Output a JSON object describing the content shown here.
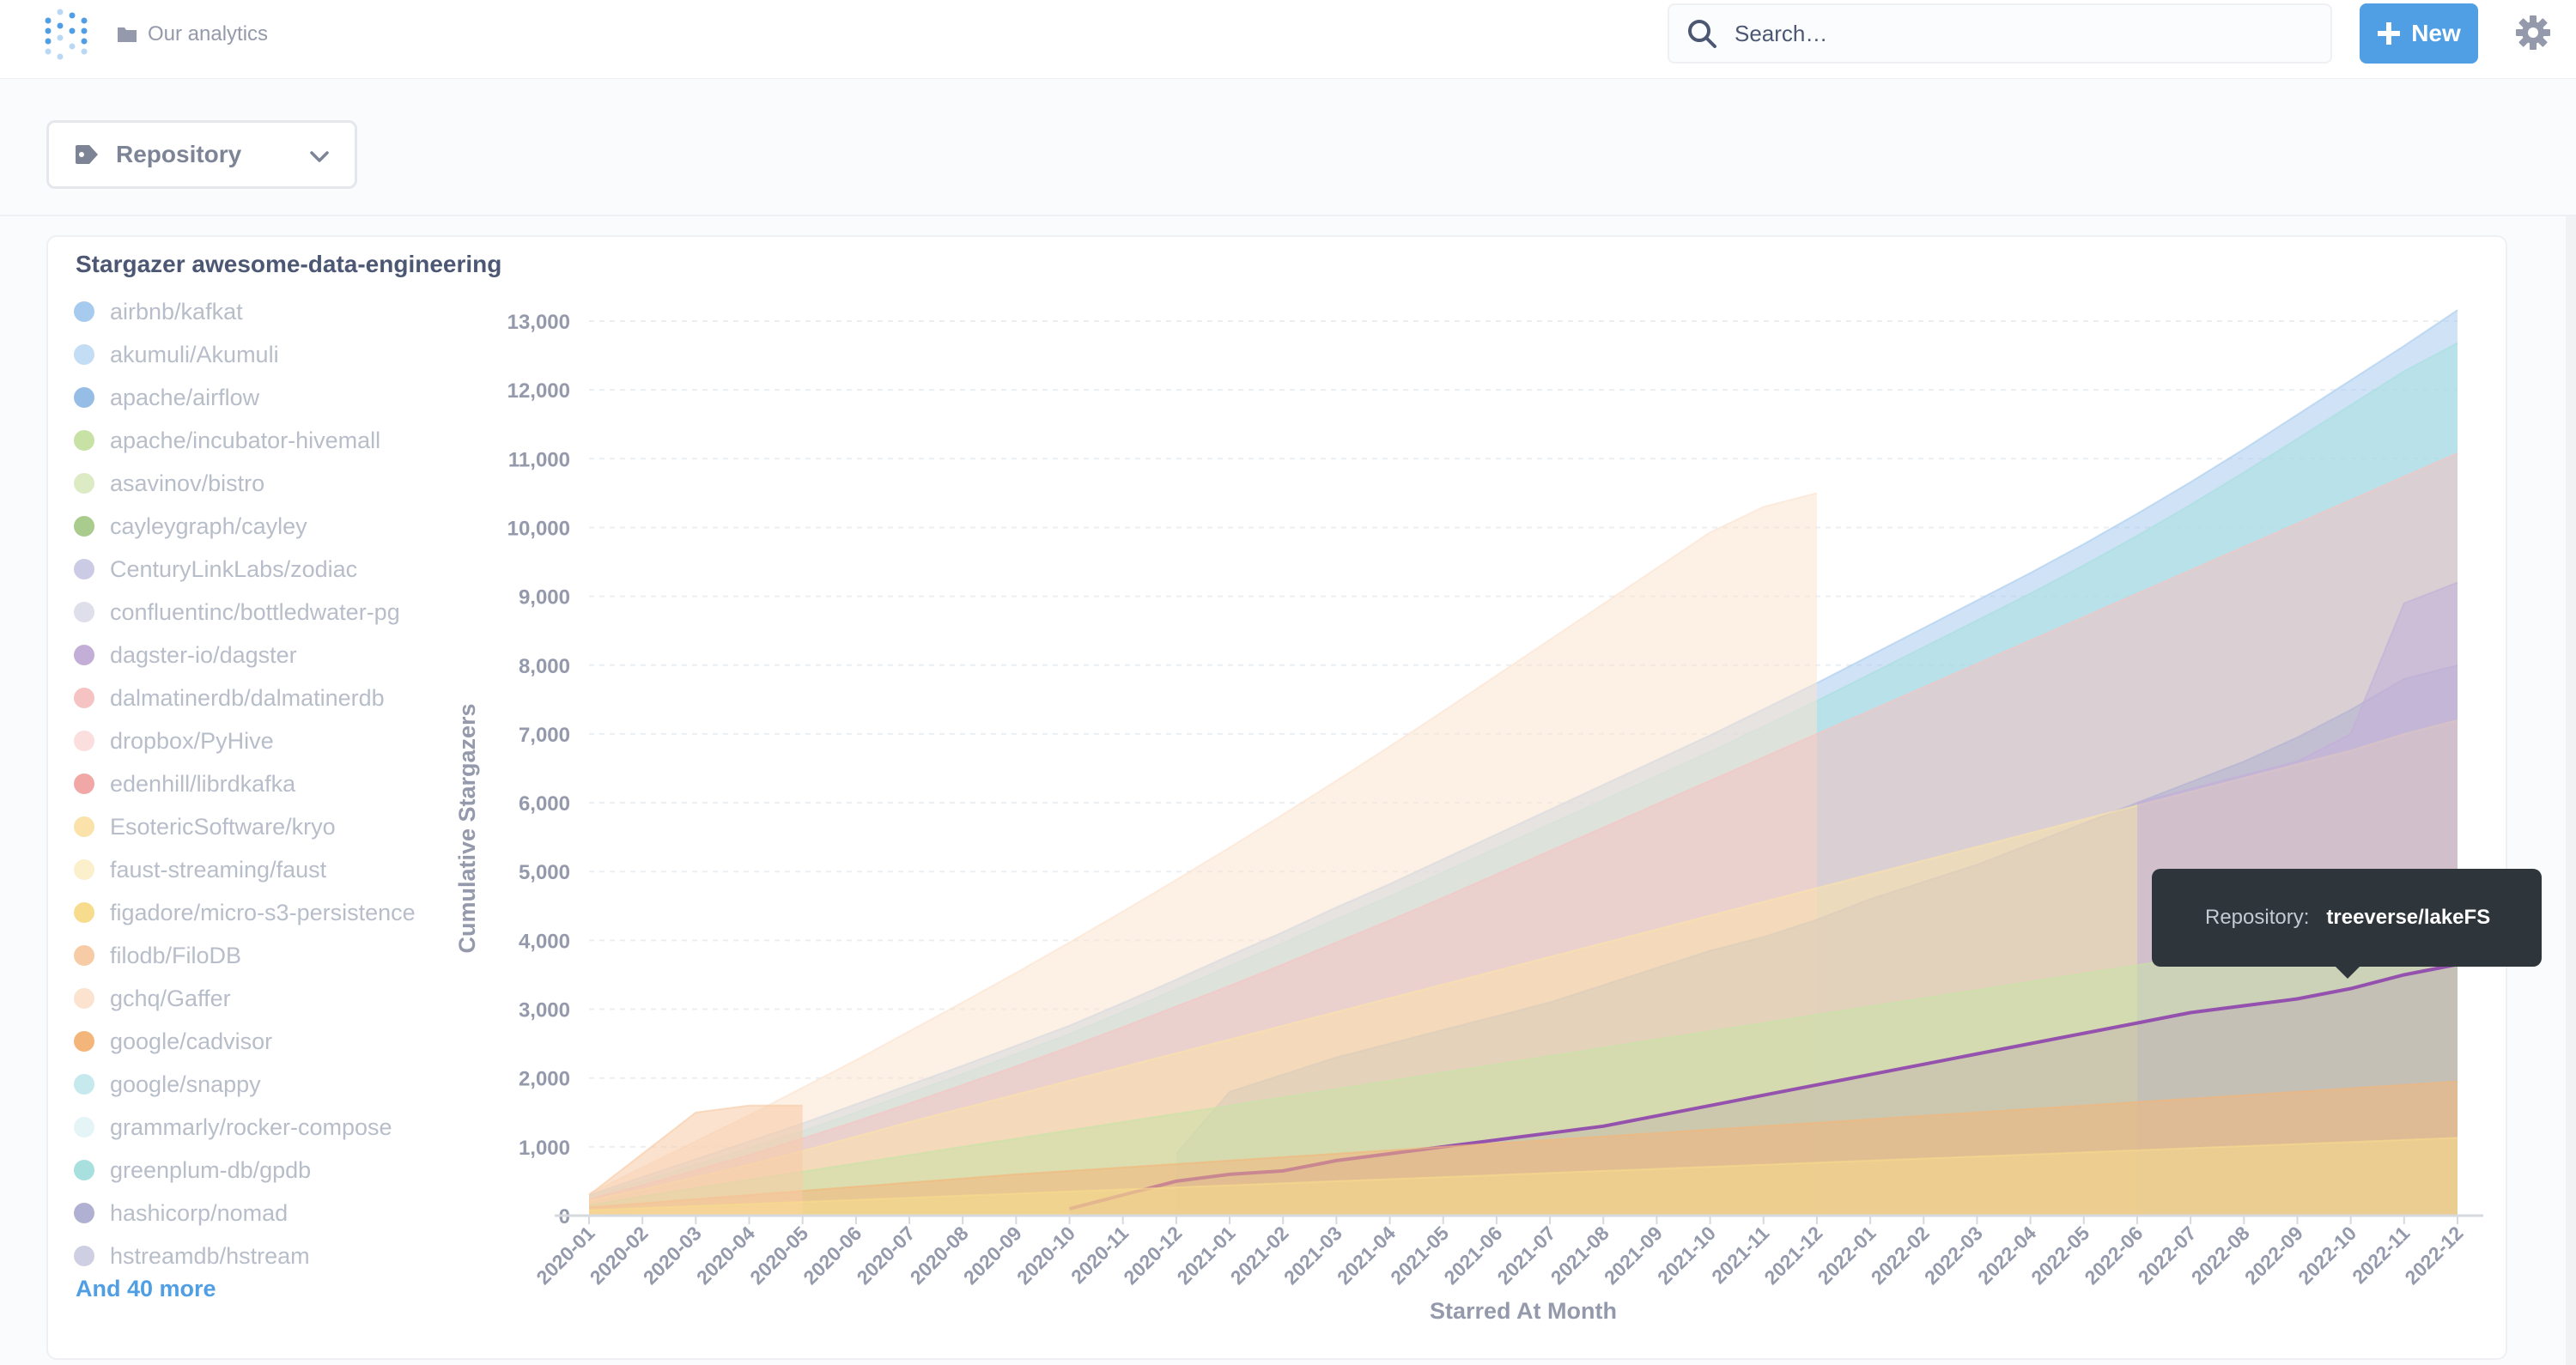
{
  "nav": {
    "breadcrumb": "Our analytics",
    "search_placeholder": "Search…",
    "new_label": "New"
  },
  "filter": {
    "label": "Repository"
  },
  "card": {
    "title": "Stargazer awesome-data-engineering",
    "more_label": "And 40 more"
  },
  "legend": [
    {
      "label": "airbnb/kafkat",
      "color": "#a7cbee"
    },
    {
      "label": "akumuli/Akumuli",
      "color": "#c3ddf4"
    },
    {
      "label": "apache/airflow",
      "color": "#96bde6"
    },
    {
      "label": "apache/incubator-hivemall",
      "color": "#c8e2a6"
    },
    {
      "label": "asavinov/bistro",
      "color": "#dcebc4"
    },
    {
      "label": "cayleygraph/cayley",
      "color": "#a9cb8d"
    },
    {
      "label": "CenturyLinkLabs/zodiac",
      "color": "#cbcbe6"
    },
    {
      "label": "confluentinc/bottledwater-pg",
      "color": "#dfdfec"
    },
    {
      "label": "dagster-io/dagster",
      "color": "#c3aed8"
    },
    {
      "label": "dalmatinerdb/dalmatinerdb",
      "color": "#f6c3c3"
    },
    {
      "label": "dropbox/PyHive",
      "color": "#fbdede"
    },
    {
      "label": "edenhill/librdkafka",
      "color": "#f2a7a7"
    },
    {
      "label": "EsotericSoftware/kryo",
      "color": "#fbe2aa"
    },
    {
      "label": "faust-streaming/faust",
      "color": "#fcefcb"
    },
    {
      "label": "figadore/micro-s3-persistence",
      "color": "#f8dc8e"
    },
    {
      "label": "filodb/FiloDB",
      "color": "#f7cba5"
    },
    {
      "label": "gchq/Gaffer",
      "color": "#fbe3cf"
    },
    {
      "label": "google/cadvisor",
      "color": "#f4b57a"
    },
    {
      "label": "google/snappy",
      "color": "#c6e9ee"
    },
    {
      "label": "grammarly/rocker-compose",
      "color": "#e5f4f6"
    },
    {
      "label": "greenplum-db/gpdb",
      "color": "#a7e0df"
    },
    {
      "label": "hashicorp/nomad",
      "color": "#b0b0d2"
    },
    {
      "label": "hstreamdb/hstream",
      "color": "#cfcfe3"
    }
  ],
  "tooltip": {
    "key": "Repository:",
    "value": "treeverse/lakeFS"
  },
  "chart_data": {
    "type": "area",
    "title": "Stargazer awesome-data-engineering",
    "xlabel": "Starred At Month",
    "ylabel": "Cumulative Stargazers",
    "ylim": [
      0,
      13000
    ],
    "yticks": [
      0,
      1000,
      2000,
      3000,
      4000,
      5000,
      6000,
      7000,
      8000,
      9000,
      10000,
      11000,
      12000,
      13000
    ],
    "ytick_labels": [
      "0",
      "1,000",
      "2,000",
      "3,000",
      "4,000",
      "5,000",
      "6,000",
      "7,000",
      "8,000",
      "9,000",
      "10,000",
      "11,000",
      "12,000",
      "13,000"
    ],
    "grid": true,
    "legend_position": "left",
    "categories": [
      "2020-01",
      "2020-02",
      "2020-03",
      "2020-04",
      "2020-05",
      "2020-06",
      "2020-07",
      "2020-08",
      "2020-09",
      "2020-10",
      "2020-11",
      "2020-12",
      "2021-01",
      "2021-02",
      "2021-03",
      "2021-04",
      "2021-05",
      "2021-06",
      "2021-07",
      "2021-08",
      "2021-09",
      "2021-10",
      "2021-11",
      "2021-12",
      "2022-01",
      "2022-02",
      "2022-03",
      "2022-04",
      "2022-05",
      "2022-06",
      "2022-07",
      "2022-08",
      "2022-09",
      "2022-10",
      "2022-11",
      "2022-12"
    ],
    "series": [
      {
        "name": "airbnb/kafkat",
        "color": "#a7cbee",
        "values": [
          300,
          560,
          820,
          1080,
          1340,
          1620,
          1900,
          2180,
          2470,
          2760,
          3090,
          3430,
          3780,
          4120,
          4480,
          4820,
          5180,
          5540,
          5900,
          6260,
          6620,
          6980,
          7360,
          7740,
          8140,
          8540,
          8940,
          9340,
          9760,
          10200,
          10660,
          11140,
          11640,
          12140,
          12640,
          13160
        ]
      },
      {
        "name": "greenplum-db/gpdb",
        "color": "#a7e0df",
        "values": [
          280,
          500,
          740,
          980,
          1230,
          1500,
          1780,
          2060,
          2350,
          2640,
          2960,
          3290,
          3630,
          3960,
          4310,
          4640,
          4990,
          5340,
          5690,
          6040,
          6390,
          6740,
          7110,
          7480,
          7870,
          8260,
          8650,
          9040,
          9450,
          9880,
          10330,
          10800,
          11290,
          11780,
          12270,
          12680
        ]
      },
      {
        "name": "gchq/Gaffer",
        "color": "#fbe3cf",
        "values": [
          320,
          700,
          1080,
          1460,
          1860,
          2260,
          2680,
          3100,
          3530,
          3970,
          4420,
          4880,
          5350,
          5830,
          6320,
          6820,
          7330,
          7850,
          8370,
          8890,
          9410,
          9930,
          10300,
          10500,
          null,
          null,
          null,
          null,
          null,
          null,
          null,
          null,
          null,
          null,
          null,
          null
        ]
      },
      {
        "name": "dalmatinerdb/dalmatinerdb",
        "color": "#f6c3c3",
        "values": [
          240,
          440,
          660,
          880,
          1120,
          1370,
          1630,
          1900,
          2170,
          2450,
          2740,
          3040,
          3340,
          3650,
          3970,
          4290,
          4620,
          4960,
          5300,
          5640,
          5980,
          6320,
          6660,
          7000,
          7340,
          7680,
          8020,
          8360,
          8700,
          9040,
          9380,
          9720,
          10060,
          10400,
          10740,
          11080
        ]
      },
      {
        "name": "hashicorp/nomad",
        "color": "#b0b0d2",
        "values": [
          null,
          null,
          null,
          null,
          null,
          null,
          null,
          null,
          null,
          null,
          null,
          900,
          1800,
          2050,
          2300,
          2500,
          2700,
          2900,
          3100,
          3350,
          3600,
          3850,
          4050,
          4300,
          4600,
          4850,
          5100,
          5400,
          5700,
          6000,
          6300,
          6600,
          6950,
          7350,
          7800,
          8000
        ]
      },
      {
        "name": "EsotericSoftware/kryo",
        "color": "#fbe2aa",
        "values": [
          220,
          380,
          560,
          740,
          940,
          1150,
          1360,
          1560,
          1760,
          1960,
          2160,
          2360,
          2560,
          2760,
          2960,
          3160,
          3360,
          3560,
          3760,
          3960,
          4160,
          4360,
          4560,
          4760,
          4960,
          5160,
          5360,
          5560,
          5760,
          5960,
          6160,
          6360,
          6560,
          6760,
          7000,
          7200
        ]
      },
      {
        "name": "dagster-io/dagster",
        "color": "#c3aed8",
        "values": [
          null,
          null,
          null,
          null,
          null,
          null,
          null,
          null,
          null,
          null,
          null,
          null,
          null,
          null,
          null,
          null,
          null,
          null,
          null,
          null,
          null,
          null,
          null,
          null,
          null,
          null,
          null,
          null,
          null,
          6000,
          6200,
          6400,
          6600,
          7000,
          8900,
          9200
        ]
      },
      {
        "name": "apache/incubator-hivemall",
        "color": "#c8e2a6",
        "values": [
          150,
          280,
          400,
          520,
          640,
          760,
          880,
          1000,
          1120,
          1240,
          1360,
          1480,
          1600,
          1720,
          1840,
          1960,
          2080,
          2200,
          2320,
          2440,
          2560,
          2680,
          2800,
          2920,
          3040,
          3160,
          3280,
          3400,
          3520,
          3640,
          3760,
          3880,
          4000,
          4120,
          4240,
          4360
        ]
      },
      {
        "name": "treeverse/lakeFS",
        "color": "#8e44ad",
        "values": [
          null,
          null,
          null,
          null,
          null,
          null,
          null,
          null,
          null,
          100,
          300,
          500,
          600,
          650,
          800,
          900,
          1000,
          1100,
          1200,
          1300,
          1450,
          1600,
          1750,
          1900,
          2050,
          2200,
          2350,
          2500,
          2650,
          2800,
          2950,
          3050,
          3150,
          3300,
          3500,
          3650
        ]
      },
      {
        "name": "google/cadvisor",
        "color": "#f4b57a",
        "values": [
          120,
          180,
          240,
          300,
          360,
          420,
          480,
          540,
          600,
          650,
          700,
          750,
          800,
          850,
          900,
          950,
          1000,
          1050,
          1100,
          1150,
          1200,
          1250,
          1300,
          1350,
          1400,
          1450,
          1500,
          1550,
          1600,
          1650,
          1700,
          1750,
          1800,
          1850,
          1900,
          1950
        ]
      },
      {
        "name": "filodb/FiloDB",
        "color": "#f7cba5",
        "values": [
          300,
          900,
          1500,
          1600,
          1600,
          null,
          null,
          null,
          null,
          null,
          null,
          null,
          null,
          null,
          null,
          null,
          null,
          null,
          null,
          null,
          null,
          null,
          null,
          null,
          null,
          null,
          null,
          null,
          null,
          null,
          null,
          null,
          null,
          null,
          null,
          null
        ]
      },
      {
        "name": "figadore/micro-s3-persistence",
        "color": "#f8dc8e",
        "values": [
          80,
          110,
          140,
          170,
          200,
          230,
          260,
          290,
          320,
          350,
          380,
          410,
          440,
          470,
          500,
          530,
          560,
          590,
          620,
          650,
          680,
          710,
          740,
          770,
          800,
          830,
          860,
          890,
          920,
          950,
          980,
          1010,
          1040,
          1070,
          1100,
          1130
        ]
      }
    ]
  }
}
